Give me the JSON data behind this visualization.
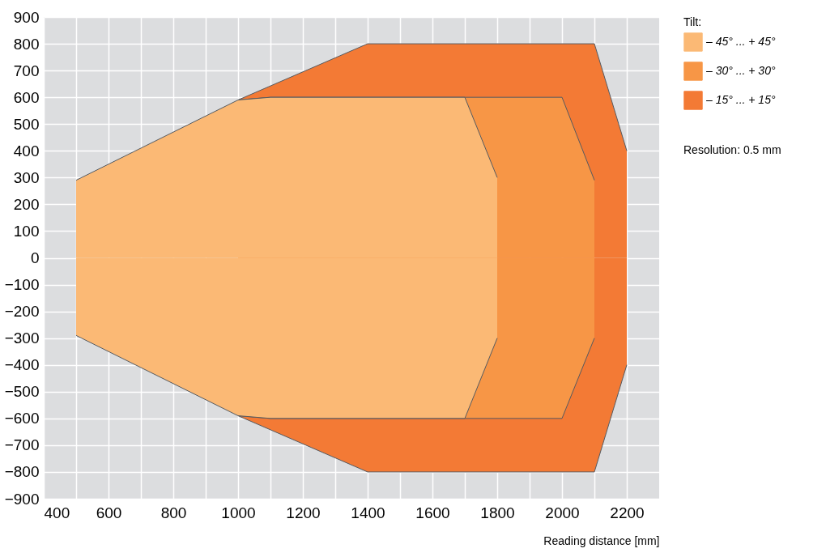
{
  "chart_data": {
    "type": "area",
    "xlabel": "Reading distance [mm]",
    "legend_title": "Tilt:",
    "legend": "right",
    "annotations": [
      "Resolution: 0.5 mm"
    ],
    "series": [
      {
        "name": "– 45° ... + 45°",
        "color": "#fbb975",
        "x": [
          500,
          1000,
          1100,
          1700,
          1800
        ],
        "values": [
          290,
          590,
          600,
          600,
          300
        ]
      },
      {
        "color": "#fbb975",
        "x": [
          500,
          1000,
          1100,
          1700,
          1800
        ],
        "values": [
          -290,
          -590,
          -600,
          -600,
          -300
        ]
      },
      {
        "name": "– 30° ... + 30°",
        "color": "#f79646",
        "x": [
          1000,
          1100,
          2000,
          2100
        ],
        "values": [
          590,
          600,
          600,
          290
        ]
      },
      {
        "color": "#f79646",
        "x": [
          1000,
          1100,
          2000,
          2100
        ],
        "values": [
          -590,
          -600,
          -600,
          -300
        ]
      },
      {
        "name": "– 15° ... + 15°",
        "color": "#f37a35",
        "x": [
          1000,
          1400,
          2100,
          2200
        ],
        "values": [
          590,
          800,
          800,
          400
        ]
      },
      {
        "color": "#f37a35",
        "x": [
          1000,
          1400,
          2100,
          2200
        ],
        "values": [
          -590,
          -800,
          -800,
          -400
        ]
      }
    ],
    "xlim": [
      400,
      2300
    ],
    "ylim": [
      -900,
      900
    ],
    "xticks": [
      400,
      {
        "value": 500,
        "label": null
      },
      600,
      {
        "value": 700,
        "label": null
      },
      800,
      {
        "value": 900,
        "label": null
      },
      1000,
      {
        "value": 1100,
        "label": null
      },
      1200,
      {
        "value": 1300,
        "label": null
      },
      1400,
      {
        "value": 1500,
        "label": null
      },
      1600,
      {
        "value": 1700,
        "label": null
      },
      1800,
      {
        "value": 1900,
        "label": null
      },
      2000,
      {
        "value": 2100,
        "label": null
      },
      2200
    ],
    "yticks": [
      {
        "value": -900,
        "label": "−900"
      },
      {
        "value": -800,
        "label": "−800"
      },
      {
        "value": -700,
        "label": "−700"
      },
      {
        "value": -600,
        "label": "−600"
      },
      {
        "value": -500,
        "label": "−500"
      },
      {
        "value": -400,
        "label": "−400"
      },
      {
        "value": -300,
        "label": "−300"
      },
      {
        "value": -200,
        "label": "−200"
      },
      {
        "value": -100,
        "label": "−100"
      },
      0,
      100,
      200,
      300,
      400,
      500,
      600,
      700,
      800,
      900
    ],
    "grid": true
  }
}
